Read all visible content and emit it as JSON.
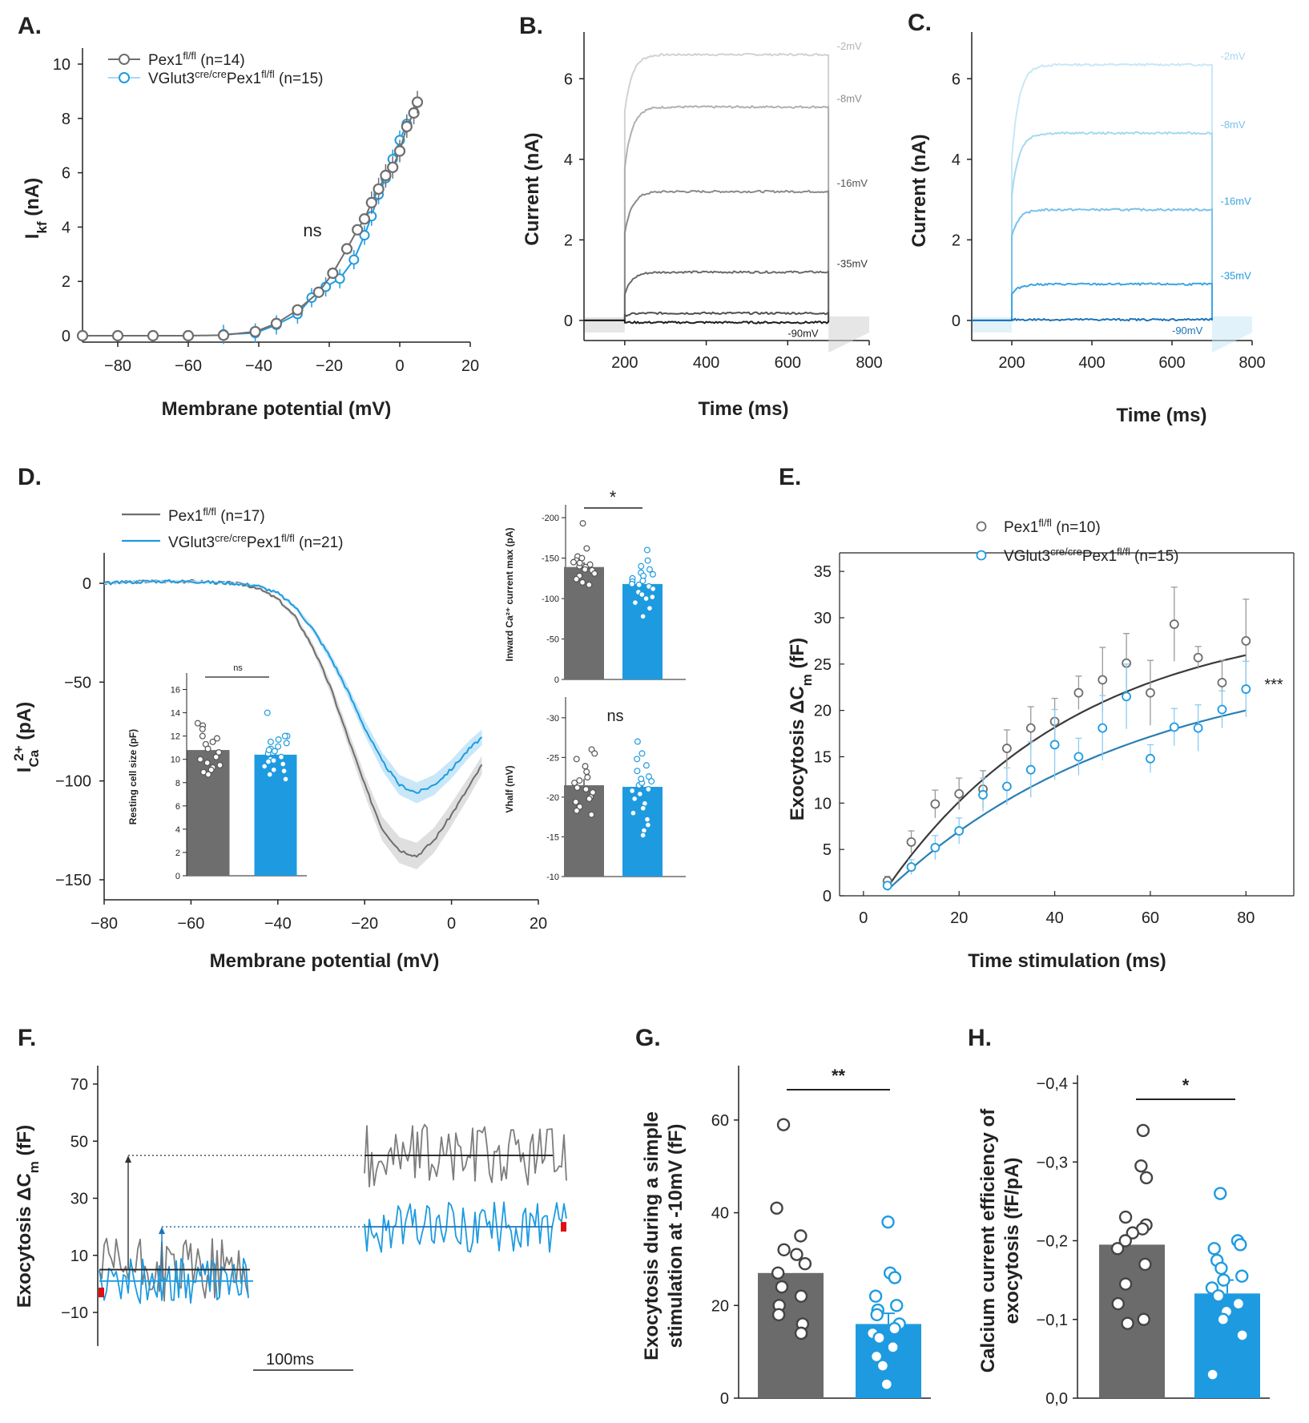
{
  "colors": {
    "gray": "#6e6e6e",
    "grayDark": "#3a3a3a",
    "grayLight": "#b5b5b5",
    "blue": "#1e9be0",
    "blueLight": "#a9d8f3",
    "red": "#e01010"
  },
  "panel_letters": {
    "A": "A.",
    "B": "B.",
    "C": "C.",
    "D": "D.",
    "E": "E.",
    "F": "F.",
    "G": "G.",
    "H": "H."
  },
  "legend_common": {
    "sup": "fl/fl",
    "sup_cre": "cre/cre",
    "pex": "Pex1",
    "vglut": "VGlut3"
  },
  "chart_data": [
    {
      "id": "A",
      "type": "line",
      "xlabel": "Membrane potential (mV)",
      "ylabel_main": "I",
      "ylabel_sub": "kf",
      "ylabel_unit": " (nA)",
      "xlim": [
        -90,
        20
      ],
      "ylim": [
        0,
        10
      ],
      "xticks": [
        -80,
        -60,
        -40,
        -20,
        0,
        20
      ],
      "yticks": [
        0,
        2,
        4,
        6,
        8,
        10
      ],
      "annotation": "ns",
      "series": [
        {
          "name": "Pex1",
          "suffix": " (n=14)",
          "x": [
            -90,
            -80,
            -70,
            -60,
            -50,
            -41,
            -35,
            -29,
            -23,
            -19,
            -15,
            -12,
            -10,
            -8,
            -6,
            -4,
            -2,
            0,
            2,
            4,
            5
          ],
          "y": [
            0,
            0,
            0,
            0,
            0.02,
            0.15,
            0.45,
            0.95,
            1.6,
            2.3,
            3.2,
            3.9,
            4.3,
            4.9,
            5.4,
            5.9,
            6.2,
            6.8,
            7.7,
            8.2,
            8.6
          ]
        },
        {
          "name": "VGlut3",
          "suffix": "Pex1",
          "suffix2": " (n=15)",
          "x": [
            -50,
            -41,
            -35,
            -29,
            -25,
            -21,
            -17,
            -13,
            -10,
            -8,
            -6,
            -4,
            -2,
            0,
            2
          ],
          "y": [
            0.05,
            0.1,
            0.4,
            0.8,
            1.4,
            1.8,
            2.1,
            2.8,
            3.7,
            4.4,
            5.2,
            5.8,
            6.5,
            7.2,
            7.8
          ]
        }
      ]
    },
    {
      "id": "B",
      "type": "line",
      "xlabel": "Time (ms)",
      "ylabel": "Current (nA)",
      "xlim": [
        100,
        800
      ],
      "ylim": [
        -0.3,
        7
      ],
      "xticks": [
        200,
        400,
        600,
        800
      ],
      "yticks": [
        0,
        2,
        4,
        6
      ],
      "traces": [
        {
          "label": "-2mV",
          "steady": 6.6,
          "initial": 5.2
        },
        {
          "label": "-8mV",
          "steady": 5.3,
          "initial": 3.8
        },
        {
          "label": "-16mV",
          "steady": 3.2,
          "initial": 2.15
        },
        {
          "label": "-35mV",
          "steady": 1.2,
          "initial": 0.65
        },
        {
          "label": "",
          "steady": 0.18,
          "initial": 0.12
        },
        {
          "label": "-90mV",
          "steady": -0.05,
          "initial": -0.05
        }
      ]
    },
    {
      "id": "C",
      "type": "line",
      "xlabel": "Time (ms)",
      "ylabel": "Current (nA)",
      "xlim": [
        100,
        800
      ],
      "ylim": [
        -0.3,
        7
      ],
      "xticks": [
        200,
        400,
        600,
        800
      ],
      "yticks": [
        0,
        2,
        4,
        6
      ],
      "traces": [
        {
          "label": "-2mV",
          "steady": 6.35,
          "initial": 4.0
        },
        {
          "label": "-8mV",
          "steady": 4.65,
          "initial": 3.1
        },
        {
          "label": "-16mV",
          "steady": 2.75,
          "initial": 2.1
        },
        {
          "label": "-35mV",
          "steady": 0.9,
          "initial": 0.65
        },
        {
          "label": "-90mV",
          "steady": 0.02,
          "initial": 0.02
        }
      ]
    },
    {
      "id": "D",
      "type": "line",
      "xlabel": "Membrane potential (mV)",
      "ylabel_main": "I",
      "ylabel_sub": "Ca",
      "ylabel_sup": "2+",
      "ylabel_unit": " (pA)",
      "xlim": [
        -80,
        20
      ],
      "ylim": [
        -155,
        20
      ],
      "xticks": [
        -80,
        -60,
        -40,
        -20,
        0,
        20
      ],
      "yticks": [
        0,
        -50,
        -100,
        -150
      ],
      "series": [
        {
          "name": "Pex1",
          "suffix": " (n=17)",
          "x": [
            -80,
            -70,
            -60,
            -50,
            -45,
            -40,
            -36,
            -32,
            -28,
            -24,
            -20,
            -16,
            -12,
            -8,
            -4,
            0,
            4,
            7
          ],
          "y": [
            0,
            1,
            1,
            0,
            -2,
            -8,
            -17,
            -32,
            -52,
            -77,
            -102,
            -124,
            -135,
            -138,
            -130,
            -117,
            -103,
            -92
          ]
        },
        {
          "name": "VGlut3",
          "suffix": "Pex1",
          "suffix2": " (n=21)",
          "x": [
            -80,
            -70,
            -60,
            -50,
            -45,
            -40,
            -36,
            -32,
            -28,
            -24,
            -20,
            -16,
            -12,
            -8,
            -4,
            0,
            4,
            7
          ],
          "y": [
            0,
            1,
            1,
            0,
            -1,
            -5,
            -12,
            -23,
            -37,
            -54,
            -73,
            -90,
            -102,
            -106,
            -102,
            -94,
            -84,
            -78
          ]
        }
      ],
      "insets": [
        {
          "id": "cell_size",
          "ylabel": "Resting cell size (pF)",
          "yticks": [
            0,
            2,
            4,
            6,
            8,
            10,
            12,
            14,
            16
          ],
          "ylim": [
            0,
            17
          ],
          "sig": "ns",
          "bars": [
            {
              "group": "Pex1",
              "value": 10.8,
              "err": 0.4,
              "points": [
                13.1,
                12.9,
                12.6,
                12.0,
                11.5,
                11.3,
                10.9,
                10.6,
                10.2,
                10.0,
                9.7,
                9.5,
                9.3,
                9.1,
                8.9,
                8.7,
                11.8
              ]
            },
            {
              "group": "VGlut3",
              "value": 10.4,
              "err": 0.3,
              "points": [
                14.0,
                12.0,
                11.7,
                11.4,
                11.1,
                10.9,
                10.5,
                10.2,
                10.0,
                9.8,
                9.6,
                9.4,
                9.1,
                8.7,
                8.3,
                11.5,
                10.7,
                9.9,
                10.8,
                9.0,
                12.0
              ]
            }
          ]
        },
        {
          "id": "ca_max",
          "ylabel": "Inward Ca²⁺ current max (pA)",
          "yticks": [
            0,
            -50,
            -100,
            -150,
            -200
          ],
          "ylim": [
            0,
            -210
          ],
          "sig": "*",
          "bars": [
            {
              "group": "Pex1",
              "value": -139,
              "err": 6,
              "points": [
                -193,
                -162,
                -152,
                -150,
                -147,
                -145,
                -142,
                -139,
                -135,
                -131,
                -128,
                -124,
                -120,
                -117,
                -140,
                -136,
                -144
              ]
            },
            {
              "group": "VGlut3",
              "value": -118,
              "err": 6,
              "points": [
                -160,
                -147,
                -140,
                -136,
                -132,
                -128,
                -125,
                -121,
                -118,
                -115,
                -112,
                -108,
                -105,
                -100,
                -88,
                -78,
                -122,
                -130,
                -117,
                -102,
                -95
              ]
            }
          ]
        },
        {
          "id": "vhalf",
          "ylabel": "Vhalf (mV)",
          "yticks": [
            -10,
            -15,
            -20,
            -25,
            -30
          ],
          "ylim": [
            -10,
            -32
          ],
          "sig": "ns",
          "bars": [
            {
              "group": "Pex1",
              "value": -21.5,
              "err": 0.8,
              "points": [
                -26.0,
                -25.5,
                -24.8,
                -23.9,
                -23.2,
                -22.5,
                -21.8,
                -21.2,
                -20.6,
                -20.0,
                -19.4,
                -18.8,
                -18.3,
                -17.8,
                -22.1,
                -21.0,
                -19.8
              ]
            },
            {
              "group": "VGlut3",
              "value": -21.3,
              "err": 0.9,
              "points": [
                -27.0,
                -25.5,
                -24.8,
                -24.0,
                -23.3,
                -22.6,
                -22.0,
                -21.5,
                -21.0,
                -20.4,
                -19.8,
                -19.2,
                -18.6,
                -18.0,
                -17.2,
                -16.5,
                -15.8,
                -15.2,
                -21.8,
                -20.8,
                -22.3
              ]
            }
          ]
        }
      ]
    },
    {
      "id": "E",
      "type": "scatter",
      "xlabel": "Time stimulation (ms)",
      "ylabel_main": "Exocytosis ΔC",
      "ylabel_sub": "m",
      "ylabel_unit": " (fF)",
      "xlim": [
        -5,
        90
      ],
      "ylim": [
        0,
        37
      ],
      "xticks": [
        0,
        20,
        40,
        60,
        80
      ],
      "yticks": [
        0,
        5,
        10,
        15,
        20,
        25,
        30,
        35
      ],
      "annotation": "***",
      "series": [
        {
          "name": "Pex1",
          "suffix": " (n=10)",
          "x": [
            5,
            10,
            15,
            20,
            25,
            30,
            35,
            40,
            45,
            50,
            55,
            60,
            65,
            70,
            75,
            80
          ],
          "y": [
            1.6,
            5.8,
            9.9,
            11.0,
            11.5,
            15.9,
            18.1,
            18.8,
            21.9,
            23.3,
            25.1,
            21.9,
            29.3,
            25.7,
            23.0,
            27.5
          ],
          "err": [
            0.5,
            1.2,
            1.5,
            1.7,
            2.0,
            2.0,
            2.3,
            2.5,
            1.8,
            3.5,
            3.2,
            3.5,
            4.0,
            1.2,
            2.4,
            4.5
          ],
          "fit": {
            "A": 30.5,
            "tau": 40,
            "x0": 3.8
          }
        },
        {
          "name": "VGlut3",
          "suffix": "Pex1",
          "suffix2": " (n=15)",
          "x": [
            5,
            10,
            15,
            20,
            25,
            30,
            35,
            40,
            45,
            50,
            55,
            60,
            65,
            70,
            75,
            80
          ],
          "y": [
            1.1,
            3.1,
            5.2,
            7.0,
            10.9,
            11.8,
            13.6,
            16.3,
            15.0,
            18.1,
            21.5,
            14.8,
            18.2,
            18.1,
            20.1,
            22.3
          ],
          "err": [
            0.4,
            0.8,
            1.3,
            1.4,
            1.8,
            2.0,
            3.0,
            3.8,
            2.0,
            3.5,
            3.5,
            1.5,
            2.0,
            2.5,
            2.0,
            3.0
          ],
          "fit": {
            "A": 26.0,
            "tau": 52,
            "x0": 3.8
          }
        }
      ]
    },
    {
      "id": "F",
      "type": "line",
      "xlabel": "",
      "ylabel_main": "Exocytosis ΔC",
      "ylabel_sub": "m",
      "ylabel_unit": " (fF)",
      "ylim": [
        -18,
        72
      ],
      "yticks": [
        -10,
        10,
        30,
        50,
        70
      ],
      "scalebar": "100ms",
      "series": [
        {
          "name": "Pex1",
          "pre_mean": 5,
          "post_mean": 45
        },
        {
          "name": "VGlut3",
          "pre_mean": 1,
          "post_mean": 20
        }
      ]
    },
    {
      "id": "G",
      "type": "bar",
      "ylabel_line1": "Exocytosis during a simple",
      "ylabel_line2": "stimulation at -10mV (fF)",
      "ylim": [
        0,
        70
      ],
      "yticks": [
        0,
        20,
        40,
        60
      ],
      "sig": "**",
      "bars": [
        {
          "group": "Pex1",
          "value": 27,
          "err": 4.5,
          "points": [
            59,
            41,
            35,
            32,
            31,
            29,
            27,
            24,
            22,
            20,
            18,
            16,
            14,
            14
          ]
        },
        {
          "group": "VGlut3",
          "value": 16,
          "err": 2.3,
          "points": [
            38,
            27,
            26,
            22,
            20,
            19,
            18,
            16,
            15,
            14,
            13,
            11,
            9,
            7,
            3
          ]
        }
      ]
    },
    {
      "id": "H",
      "type": "bar",
      "ylabel_line1": "Calcium current efficiency of",
      "ylabel_line2": "exocytosis (fF/pA)",
      "ylim": [
        0,
        -0.4
      ],
      "yticks": [
        "0,0",
        "−0,1",
        "−0,2",
        "−0,3",
        "−0,4"
      ],
      "sig": "*",
      "bars": [
        {
          "group": "Pex1",
          "value": -0.195,
          "err": 0.025,
          "points": [
            -0.34,
            -0.295,
            -0.28,
            -0.23,
            -0.22,
            -0.215,
            -0.21,
            -0.2,
            -0.19,
            -0.17,
            -0.145,
            -0.12,
            -0.1,
            -0.095
          ]
        },
        {
          "group": "VGlut3",
          "value": -0.133,
          "err": 0.017,
          "points": [
            -0.26,
            -0.2,
            -0.195,
            -0.19,
            -0.175,
            -0.165,
            -0.155,
            -0.15,
            -0.14,
            -0.13,
            -0.12,
            -0.11,
            -0.1,
            -0.08,
            -0.03
          ]
        }
      ]
    }
  ]
}
